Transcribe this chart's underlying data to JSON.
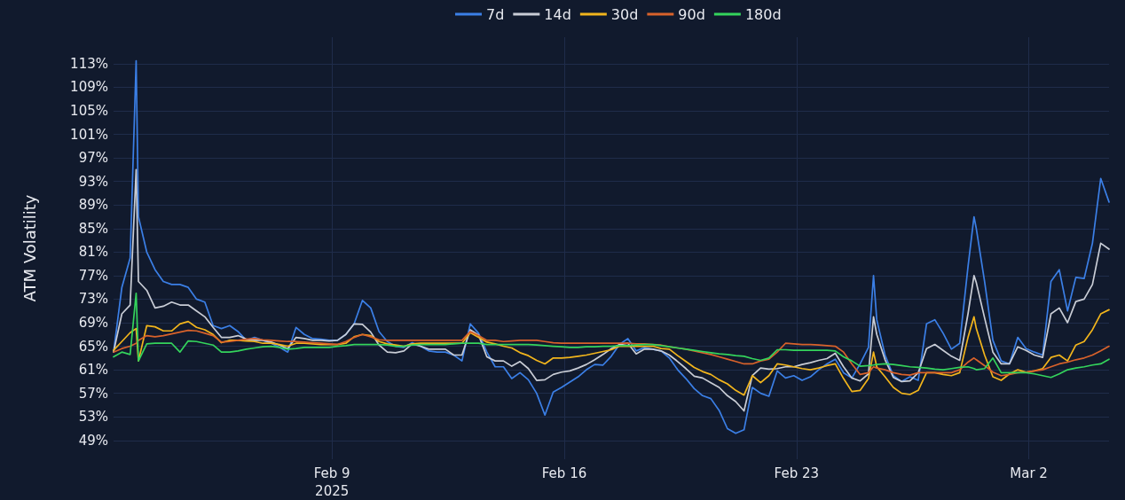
{
  "chart_data": {
    "type": "line",
    "ylabel": "ATM Volatility",
    "legend": "top",
    "grid": true,
    "marker": "none",
    "line_style": "solid",
    "xlim": [
      "2025-02-02T10:00",
      "2025-03-04T10:00"
    ],
    "ylim": [
      45.8,
      117.5
    ],
    "xticks": [
      {
        "value": "2025-02-09",
        "label": "Feb 9\n2025"
      },
      {
        "value": "2025-02-16",
        "label": "Feb 16"
      },
      {
        "value": "2025-02-23",
        "label": "Feb 23"
      },
      {
        "value": "2025-03-02",
        "label": "Mar 2"
      }
    ],
    "yticks": [
      {
        "value": 49,
        "label": "49%"
      },
      {
        "value": 53,
        "label": "53%"
      },
      {
        "value": 57,
        "label": "57%"
      },
      {
        "value": 61,
        "label": "61%"
      },
      {
        "value": 65,
        "label": "65%"
      },
      {
        "value": 69,
        "label": "69%"
      },
      {
        "value": 73,
        "label": "73%"
      },
      {
        "value": 77,
        "label": "77%"
      },
      {
        "value": 81,
        "label": "81%"
      },
      {
        "value": 85,
        "label": "85%"
      },
      {
        "value": 89,
        "label": "89%"
      },
      {
        "value": 93,
        "label": "93%"
      },
      {
        "value": 97,
        "label": "97%"
      },
      {
        "value": 101,
        "label": "101%"
      },
      {
        "value": 105,
        "label": "105%"
      },
      {
        "value": 109,
        "label": "109%"
      },
      {
        "value": 113,
        "label": "113%"
      }
    ],
    "x": [
      "2025-02-02T10:00",
      "2025-02-02T16:00",
      "2025-02-02T22:00",
      "2025-02-03T02:20",
      "2025-02-03T04:00",
      "2025-02-03T10:00",
      "2025-02-03T16:00",
      "2025-02-03T22:00",
      "2025-02-04T04:00",
      "2025-02-04T10:00",
      "2025-02-04T16:00",
      "2025-02-04T22:00",
      "2025-02-05T04:00",
      "2025-02-05T10:00",
      "2025-02-05T16:00",
      "2025-02-05T22:00",
      "2025-02-06T04:00",
      "2025-02-06T10:00",
      "2025-02-06T16:00",
      "2025-02-06T22:00",
      "2025-02-07T04:00",
      "2025-02-07T10:00",
      "2025-02-07T16:00",
      "2025-02-07T22:00",
      "2025-02-08T04:00",
      "2025-02-08T10:00",
      "2025-02-08T16:00",
      "2025-02-08T22:00",
      "2025-02-09T04:00",
      "2025-02-09T10:00",
      "2025-02-09T16:00",
      "2025-02-09T22:00",
      "2025-02-10T04:00",
      "2025-02-10T10:00",
      "2025-02-10T16:00",
      "2025-02-10T22:00",
      "2025-02-11T04:00",
      "2025-02-11T10:00",
      "2025-02-11T16:00",
      "2025-02-11T22:00",
      "2025-02-12T04:00",
      "2025-02-12T10:00",
      "2025-02-12T16:00",
      "2025-02-12T22:00",
      "2025-02-13T04:00",
      "2025-02-13T10:00",
      "2025-02-13T16:00",
      "2025-02-13T22:00",
      "2025-02-14T04:00",
      "2025-02-14T10:00",
      "2025-02-14T16:00",
      "2025-02-14T22:00",
      "2025-02-15T04:00",
      "2025-02-15T10:00",
      "2025-02-15T16:00",
      "2025-02-15T22:00",
      "2025-02-16T04:00",
      "2025-02-16T10:00",
      "2025-02-16T16:00",
      "2025-02-16T22:00",
      "2025-02-17T04:00",
      "2025-02-17T10:00",
      "2025-02-17T16:00",
      "2025-02-17T22:00",
      "2025-02-18T04:00",
      "2025-02-18T10:00",
      "2025-02-18T16:00",
      "2025-02-18T22:00",
      "2025-02-19T04:00",
      "2025-02-19T10:00",
      "2025-02-19T16:00",
      "2025-02-19T22:00",
      "2025-02-20T04:00",
      "2025-02-20T10:00",
      "2025-02-20T16:00",
      "2025-02-20T22:00",
      "2025-02-21T04:00",
      "2025-02-21T10:00",
      "2025-02-21T16:00",
      "2025-02-21T22:00",
      "2025-02-22T04:00",
      "2025-02-22T10:00",
      "2025-02-22T16:00",
      "2025-02-22T22:00",
      "2025-02-23T04:00",
      "2025-02-23T10:00",
      "2025-02-23T16:00",
      "2025-02-23T22:00",
      "2025-02-24T04:00",
      "2025-02-24T10:00",
      "2025-02-24T16:00",
      "2025-02-24T22:00",
      "2025-02-25T04:00",
      "2025-02-25T07:40",
      "2025-02-25T10:00",
      "2025-02-25T16:00",
      "2025-02-25T22:00",
      "2025-02-26T04:00",
      "2025-02-26T10:00",
      "2025-02-26T16:00",
      "2025-02-26T22:00",
      "2025-02-27T04:00",
      "2025-02-27T10:00",
      "2025-02-27T16:00",
      "2025-02-27T22:00",
      "2025-02-28T04:00",
      "2025-02-28T08:20",
      "2025-02-28T10:00",
      "2025-02-28T16:00",
      "2025-02-28T22:00",
      "2025-03-01T04:00",
      "2025-03-01T10:00",
      "2025-03-01T16:00",
      "2025-03-01T22:00",
      "2025-03-02T04:00",
      "2025-03-02T10:00",
      "2025-03-02T16:00",
      "2025-03-02T22:00",
      "2025-03-03T04:00",
      "2025-03-03T10:00",
      "2025-03-03T16:00",
      "2025-03-03T22:00",
      "2025-03-04T04:00",
      "2025-03-04T10:00"
    ],
    "series": [
      {
        "name": "7d",
        "color": "#3b7fe6",
        "values": [
          64,
          75,
          80,
          113.5,
          87,
          81,
          78,
          76,
          75.5,
          75.5,
          75,
          73,
          72.5,
          68.5,
          68,
          68.5,
          67.5,
          66,
          66.5,
          66,
          65.5,
          64.8,
          64,
          68.2,
          67,
          66.3,
          66.2,
          66,
          66,
          67,
          68.8,
          72.8,
          71.5,
          67.5,
          65.8,
          65,
          64.8,
          65.6,
          65,
          64.2,
          64,
          64,
          63.5,
          62.5,
          68.8,
          67.2,
          64,
          61.5,
          61.5,
          59.5,
          60.5,
          59.3,
          57,
          53.3,
          57.2,
          58,
          58.9,
          59.8,
          61,
          61.9,
          61.8,
          63.3,
          65.3,
          66.3,
          64.2,
          64.8,
          64.5,
          64.2,
          63,
          61,
          59.5,
          57.8,
          56.6,
          56.1,
          54.1,
          51,
          50.2,
          50.8,
          58,
          57,
          56.5,
          60.8,
          59.6,
          60,
          59.2,
          59.8,
          61,
          62,
          62.8,
          60.5,
          59.6,
          62,
          64.8,
          77,
          69.5,
          63.5,
          60,
          59,
          59.8,
          59.2,
          68.8,
          69.5,
          67.2,
          64.5,
          65.5,
          78.5,
          87,
          85,
          76,
          66,
          62.5,
          62,
          66.5,
          64.6,
          64,
          63.5,
          76,
          78,
          71,
          76.7,
          76.5,
          82.5,
          93.5,
          89.5
        ]
      },
      {
        "name": "14d",
        "color": "#c9cdd6",
        "values": [
          64,
          70.5,
          72,
          95,
          76,
          74.5,
          71.5,
          71.8,
          72.5,
          72,
          72,
          71,
          70,
          68.2,
          66.5,
          66.5,
          66.8,
          66.2,
          66,
          66,
          65.7,
          65.2,
          64.6,
          66.5,
          66.3,
          66,
          66,
          65.9,
          66,
          67,
          68.8,
          68.7,
          67.4,
          65.2,
          64,
          63.9,
          64.2,
          65.4,
          65,
          64.5,
          64.5,
          64.5,
          63.5,
          63.5,
          67.8,
          66.9,
          63.2,
          62.5,
          62.5,
          61.6,
          62.4,
          61.2,
          59.2,
          59.3,
          60.2,
          60.6,
          60.8,
          61.3,
          61.9,
          62.7,
          63.6,
          64.6,
          65.3,
          65.5,
          63.7,
          64.5,
          64.5,
          64.2,
          63.5,
          62.4,
          61.2,
          59.9,
          59.6,
          58.8,
          58,
          56.6,
          55.6,
          54,
          60,
          61.3,
          61.1,
          61.2,
          61.5,
          61.5,
          61.9,
          62.2,
          62.6,
          62.9,
          63.8,
          61.5,
          59.6,
          59.1,
          60.3,
          70,
          67,
          62.7,
          59.7,
          59,
          59.1,
          60.5,
          64.6,
          65.3,
          64.3,
          63.3,
          62.6,
          70.5,
          77,
          75.8,
          69.8,
          64,
          62,
          62,
          64.9,
          64.3,
          63.5,
          63.1,
          70.5,
          71.5,
          69,
          72.6,
          73,
          75.5,
          82.5,
          81.5
        ]
      },
      {
        "name": "30d",
        "color": "#f2b51c",
        "values": [
          64.3,
          65.8,
          67.3,
          68,
          62.5,
          68.5,
          68.3,
          67.6,
          67.6,
          68.8,
          69.2,
          68.2,
          67.8,
          67,
          65.6,
          66,
          66,
          65.9,
          65.8,
          65.5,
          65.5,
          65.3,
          65,
          65.5,
          65.5,
          65.4,
          65.3,
          65.3,
          65.3,
          65.5,
          66.6,
          67,
          66.8,
          65.8,
          65.4,
          65.2,
          65,
          65.4,
          65.5,
          65.5,
          65.5,
          65.5,
          65.5,
          65.5,
          67.3,
          66.5,
          65.7,
          65.4,
          65,
          64.7,
          63.9,
          63.4,
          62.6,
          62,
          63,
          63,
          63.1,
          63.3,
          63.5,
          63.8,
          64.1,
          64.4,
          65,
          65,
          65,
          65,
          65,
          64.6,
          64.5,
          63.4,
          62.4,
          61.4,
          60.7,
          60.2,
          59.3,
          58.6,
          57.5,
          56.7,
          60,
          58.8,
          60,
          62,
          61.8,
          61.5,
          61.2,
          61,
          61.3,
          61.7,
          62,
          59.5,
          57.3,
          57.5,
          59.5,
          64,
          61.5,
          59.8,
          58,
          57,
          56.8,
          57.5,
          60.5,
          60.5,
          60.2,
          60,
          60.5,
          66.5,
          70,
          68,
          63.5,
          59.8,
          59.2,
          60.3,
          61,
          60.6,
          60.8,
          61.2,
          63.1,
          63.5,
          62.5,
          65.2,
          65.8,
          67.8,
          70.5,
          71.2
        ]
      },
      {
        "name": "90d",
        "color": "#d9622b",
        "values": [
          64,
          64.6,
          65,
          65.5,
          66,
          66.8,
          66.6,
          66.8,
          67.1,
          67.4,
          67.7,
          67.6,
          67.2,
          66.8,
          65.7,
          65.8,
          66,
          66.2,
          66.3,
          66.1,
          66,
          65.9,
          65.8,
          65.8,
          65.7,
          65.6,
          65.5,
          65.4,
          65.3,
          65.8,
          66.5,
          67,
          66.6,
          66.1,
          66,
          66,
          66,
          66,
          66,
          66,
          66,
          66,
          66,
          66,
          67.5,
          66.8,
          66,
          66,
          65.8,
          65.9,
          66,
          66,
          66,
          65.8,
          65.6,
          65.5,
          65.5,
          65.5,
          65.5,
          65.5,
          65.5,
          65.5,
          65.5,
          65.5,
          65.4,
          65.4,
          65.3,
          65.2,
          64.9,
          64.7,
          64.5,
          64.2,
          63.9,
          63.6,
          63.2,
          62.8,
          62.4,
          62,
          62,
          62.5,
          62.8,
          64,
          65.5,
          65.4,
          65.3,
          65.3,
          65.2,
          65.1,
          65,
          64,
          62,
          60.2,
          60.5,
          61.5,
          61.3,
          61,
          60.5,
          60.2,
          60.1,
          60.5,
          60.5,
          60.5,
          60.5,
          60.5,
          61,
          62.3,
          63,
          62.7,
          61.7,
          60.6,
          60,
          60.2,
          60.5,
          60.6,
          60.8,
          61,
          61.5,
          62,
          62.3,
          62.7,
          63,
          63.5,
          64.2,
          65
        ]
      },
      {
        "name": "180d",
        "color": "#34d45c",
        "values": [
          63.2,
          64,
          63.6,
          74,
          62.5,
          65.4,
          65.5,
          65.5,
          65.5,
          64,
          65.9,
          65.8,
          65.5,
          65.2,
          64,
          64,
          64.2,
          64.5,
          64.7,
          64.9,
          65,
          64.8,
          64.5,
          64.6,
          64.8,
          64.8,
          64.8,
          64.8,
          65,
          65.1,
          65.3,
          65.3,
          65.3,
          65.3,
          65.2,
          65,
          65,
          65.2,
          65.3,
          65.3,
          65.3,
          65.3,
          65.4,
          65.5,
          65.5,
          65.5,
          65.3,
          65.3,
          65.3,
          65.3,
          65.3,
          65.3,
          65.2,
          65.1,
          65,
          64.9,
          64.8,
          64.8,
          64.9,
          64.9,
          65,
          65,
          65.1,
          65.1,
          65.2,
          65.3,
          65.3,
          65.1,
          64.9,
          64.7,
          64.5,
          64.3,
          64.1,
          63.9,
          63.7,
          63.6,
          63.4,
          63.3,
          62.9,
          62.6,
          63,
          64.4,
          64.4,
          64.3,
          64.3,
          64.3,
          64.3,
          64.3,
          64.2,
          63.2,
          62.5,
          61.6,
          61.7,
          61.8,
          61.9,
          62,
          61.9,
          61.7,
          61.5,
          61.4,
          61.3,
          61.1,
          61,
          61.2,
          61.4,
          61.5,
          61.2,
          61,
          61.2,
          63,
          60.5,
          60.5,
          60.5,
          60.5,
          60.3,
          60,
          59.7,
          60.3,
          61,
          61.3,
          61.5,
          61.8,
          62,
          62.8
        ]
      }
    ]
  }
}
